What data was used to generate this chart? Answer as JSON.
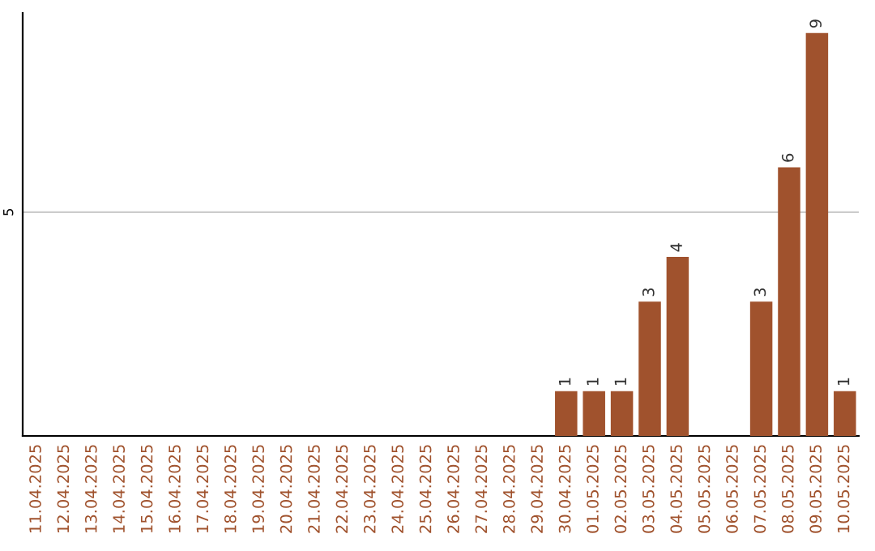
{
  "chart_data": {
    "type": "bar",
    "categories": [
      "11.04.2025",
      "12.04.2025",
      "13.04.2025",
      "14.04.2025",
      "15.04.2025",
      "16.04.2025",
      "17.04.2025",
      "18.04.2025",
      "19.04.2025",
      "20.04.2025",
      "21.04.2025",
      "22.04.2025",
      "23.04.2025",
      "24.04.2025",
      "25.04.2025",
      "26.04.2025",
      "27.04.2025",
      "28.04.2025",
      "29.04.2025",
      "30.04.2025",
      "01.05.2025",
      "02.05.2025",
      "03.05.2025",
      "04.05.2025",
      "05.05.2025",
      "06.05.2025",
      "07.05.2025",
      "08.05.2025",
      "09.05.2025",
      "10.05.2025"
    ],
    "values": [
      null,
      null,
      null,
      null,
      null,
      null,
      null,
      null,
      null,
      null,
      null,
      null,
      null,
      null,
      null,
      null,
      null,
      null,
      null,
      1,
      1,
      1,
      3,
      4,
      null,
      null,
      3,
      6,
      9,
      1
    ],
    "value_labels": [
      null,
      null,
      null,
      null,
      null,
      null,
      null,
      null,
      null,
      null,
      null,
      null,
      null,
      null,
      null,
      null,
      null,
      null,
      null,
      "1",
      "1",
      "1",
      "3",
      "4",
      null,
      null,
      "3",
      "6",
      "9",
      "1"
    ],
    "color": "#a0522d",
    "ylim": [
      0,
      9.45
    ],
    "yticks": [
      5
    ],
    "grid": "y"
  }
}
